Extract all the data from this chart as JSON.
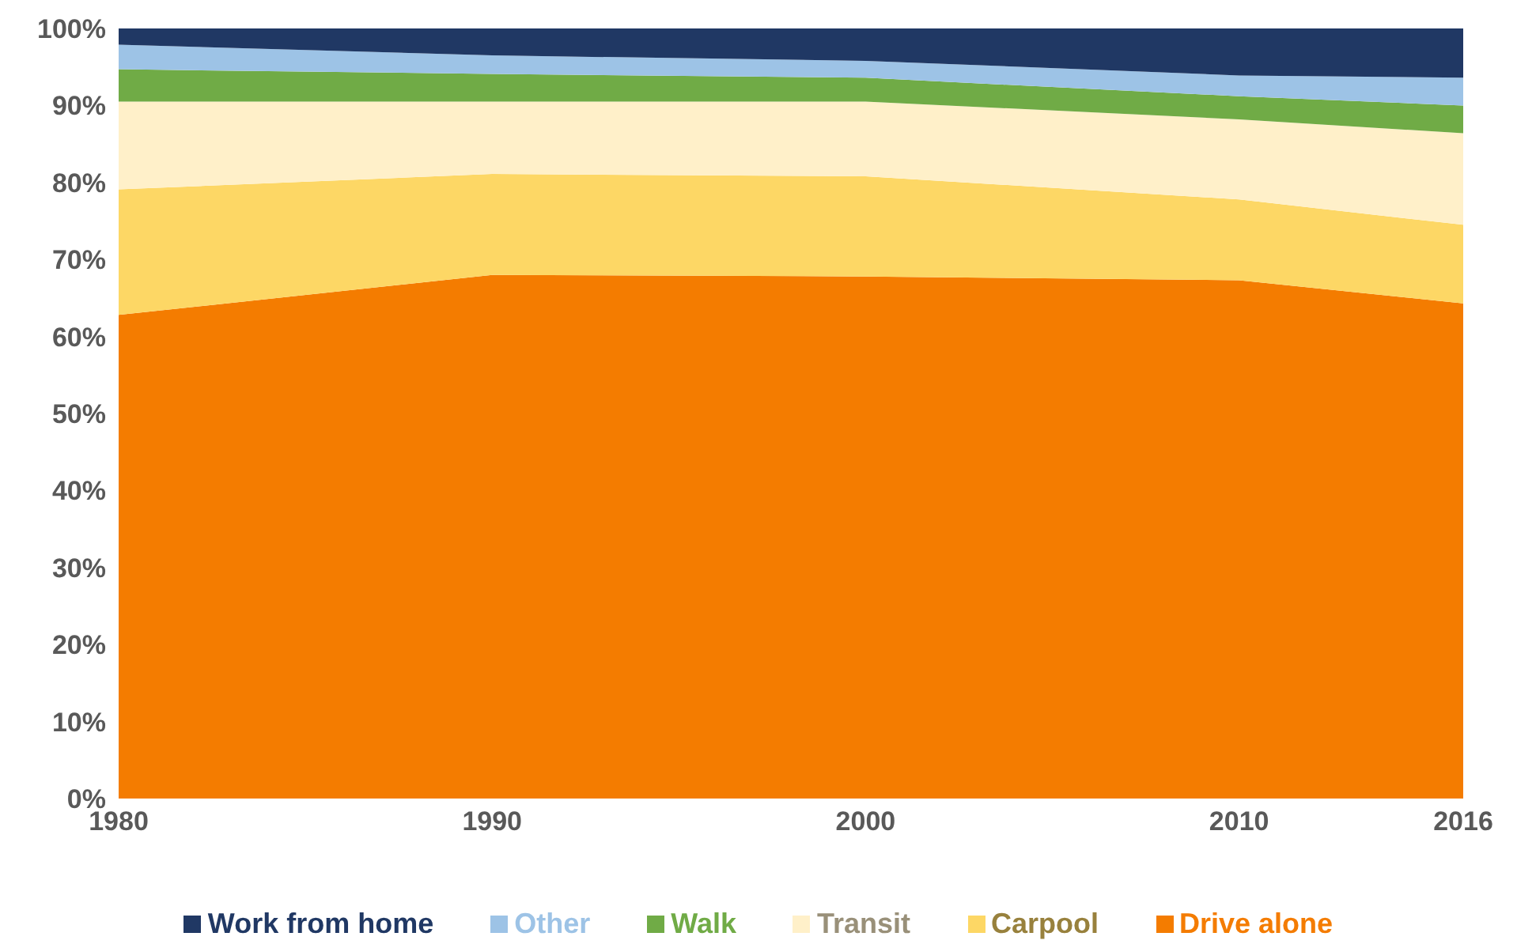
{
  "chart_data": {
    "type": "area",
    "stacked": true,
    "x": [
      1980,
      1990,
      2000,
      2010,
      2016
    ],
    "xlim": [
      1980,
      2016
    ],
    "xticks": [
      1980,
      1990,
      2000,
      2010,
      2016
    ],
    "ylim": [
      0,
      100
    ],
    "yticks": [
      {
        "value": 0,
        "label": "0%"
      },
      {
        "value": 10,
        "label": "10%"
      },
      {
        "value": 20,
        "label": "20%"
      },
      {
        "value": 30,
        "label": "30%"
      },
      {
        "value": 40,
        "label": "40%"
      },
      {
        "value": 50,
        "label": "50%"
      },
      {
        "value": 60,
        "label": "60%"
      },
      {
        "value": 70,
        "label": "70%"
      },
      {
        "value": 80,
        "label": "80%"
      },
      {
        "value": 90,
        "label": "90%"
      },
      {
        "value": 100,
        "label": "100%"
      }
    ],
    "grid": false,
    "legend": "bottom",
    "series": [
      {
        "name": "Drive alone",
        "color": "#f47c00",
        "values": [
          62.8,
          68.0,
          67.8,
          67.3,
          64.3
        ]
      },
      {
        "name": "Carpool",
        "color": "#fdd765",
        "values": [
          16.3,
          13.1,
          13.0,
          10.5,
          10.2
        ]
      },
      {
        "name": "Transit",
        "color": "#fff0c9",
        "values": [
          11.4,
          9.4,
          9.7,
          10.4,
          11.9
        ]
      },
      {
        "name": "Walk",
        "color": "#70ab46",
        "values": [
          4.2,
          3.6,
          3.1,
          3.0,
          3.6
        ]
      },
      {
        "name": "Other",
        "color": "#9dc3e6",
        "values": [
          3.2,
          2.4,
          2.2,
          2.7,
          3.6
        ]
      },
      {
        "name": "Work from home",
        "color": "#203864",
        "values": [
          2.1,
          3.5,
          4.2,
          6.1,
          6.4
        ]
      }
    ]
  }
}
